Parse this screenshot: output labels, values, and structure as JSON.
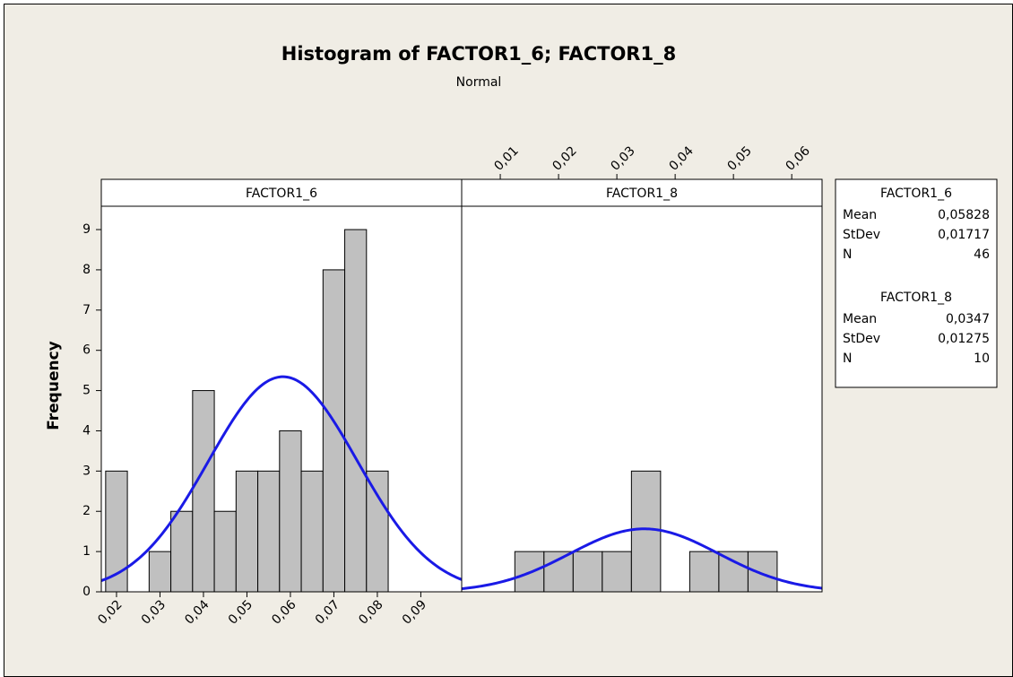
{
  "chart_data": {
    "type": "histogram",
    "title": "Histogram of FACTOR1_6; FACTOR1_8",
    "subtitle": "Normal",
    "ylabel": "Frequency",
    "ylim": [
      0,
      9.58
    ],
    "yticks": [
      0,
      1,
      2,
      3,
      4,
      5,
      6,
      7,
      8,
      9
    ],
    "bar_color": "#c0c0c0",
    "curve_color": "#1a1ae6",
    "stat_labels": [
      "Mean",
      "StDev",
      "N"
    ],
    "panels": [
      {
        "name": "FACTOR1_6",
        "bins": [
          0.0175,
          0.0225,
          0.0275,
          0.0325,
          0.0375,
          0.0425,
          0.0475,
          0.0525,
          0.0575,
          0.0625,
          0.0675,
          0.0725,
          0.0775,
          0.0825
        ],
        "values": [
          3,
          0,
          1,
          2,
          5,
          2,
          3,
          3,
          4,
          3,
          8,
          9,
          3
        ],
        "xlim": [
          0.0165,
          0.0994
        ],
        "xticks": [
          {
            "value": 0.02,
            "label": "0,02"
          },
          {
            "value": 0.03,
            "label": "0,03"
          },
          {
            "value": 0.04,
            "label": "0,04"
          },
          {
            "value": 0.05,
            "label": "0,05"
          },
          {
            "value": 0.06,
            "label": "0,06"
          },
          {
            "value": 0.07,
            "label": "0,07"
          },
          {
            "value": 0.08,
            "label": "0,08"
          },
          {
            "value": 0.09,
            "label": "0,09"
          }
        ],
        "mean": {
          "value": 0.05828,
          "label": "0,05828"
        },
        "stdev": {
          "value": 0.01717,
          "label": "0,01717"
        },
        "n": 46
      },
      {
        "name": "FACTOR1_8",
        "bins": [
          0.0125,
          0.0175,
          0.0225,
          0.0275,
          0.0325,
          0.0375,
          0.0425,
          0.0475,
          0.0525,
          0.0575
        ],
        "values": [
          1,
          1,
          1,
          1,
          3,
          0,
          1,
          1,
          1
        ],
        "xlim": [
          0.00338,
          0.0652
        ],
        "xticks": [
          {
            "value": 0.01,
            "label": "0,01"
          },
          {
            "value": 0.02,
            "label": "0,02"
          },
          {
            "value": 0.03,
            "label": "0,03"
          },
          {
            "value": 0.04,
            "label": "0,04"
          },
          {
            "value": 0.05,
            "label": "0,05"
          },
          {
            "value": 0.06,
            "label": "0,06"
          }
        ],
        "mean": {
          "value": 0.0347,
          "label": "0,0347"
        },
        "stdev": {
          "value": 0.01275,
          "label": "0,01275"
        },
        "n": 10
      }
    ]
  }
}
